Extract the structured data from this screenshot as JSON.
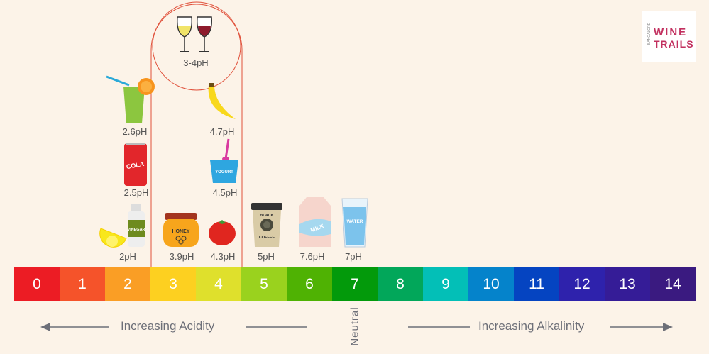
{
  "logo": {
    "small": "BANGALORE",
    "line1": "WINE",
    "line2": "TRAILS",
    "color": "#c2305f"
  },
  "wine": {
    "label": "3-4pH",
    "outline_color": "#e0503a"
  },
  "items": [
    {
      "name": "lemon-vinegar",
      "ph": "2pH",
      "tag": "VINEGAR"
    },
    {
      "name": "honey",
      "ph": "3.9pH",
      "tag": "HONEY"
    },
    {
      "name": "tomato",
      "ph": "4.3pH"
    },
    {
      "name": "black-coffee",
      "ph": "5pH",
      "tag1": "BLACK",
      "tag2": "COFFEE"
    },
    {
      "name": "milk",
      "ph": "7.6pH",
      "tag": "MILK"
    },
    {
      "name": "water",
      "ph": "7pH",
      "tag": "WATER"
    },
    {
      "name": "cola",
      "ph": "2.5pH",
      "tag": "COLA"
    },
    {
      "name": "juice",
      "ph": "2.6pH"
    },
    {
      "name": "yogurt",
      "ph": "4.5pH",
      "tag": "YOGURT"
    },
    {
      "name": "banana",
      "ph": "4.7pH"
    }
  ],
  "scale": [
    {
      "v": "0",
      "c": "#ec1c24"
    },
    {
      "v": "1",
      "c": "#f5532a"
    },
    {
      "v": "2",
      "c": "#fa9e25"
    },
    {
      "v": "3",
      "c": "#fdd020"
    },
    {
      "v": "4",
      "c": "#dfe02c"
    },
    {
      "v": "5",
      "c": "#9ad21e"
    },
    {
      "v": "6",
      "c": "#4fb203"
    },
    {
      "v": "7",
      "c": "#039a0b"
    },
    {
      "v": "8",
      "c": "#02a75a"
    },
    {
      "v": "9",
      "c": "#03bfb7"
    },
    {
      "v": "10",
      "c": "#0583cb"
    },
    {
      "v": "11",
      "c": "#0544c1"
    },
    {
      "v": "12",
      "c": "#2e22ac"
    },
    {
      "v": "13",
      "c": "#351c97"
    },
    {
      "v": "14",
      "c": "#3a1a80"
    }
  ],
  "labels": {
    "acidity": "Increasing Acidity",
    "alkalinity": "Increasing Alkalinity",
    "neutral": "Neutral"
  }
}
